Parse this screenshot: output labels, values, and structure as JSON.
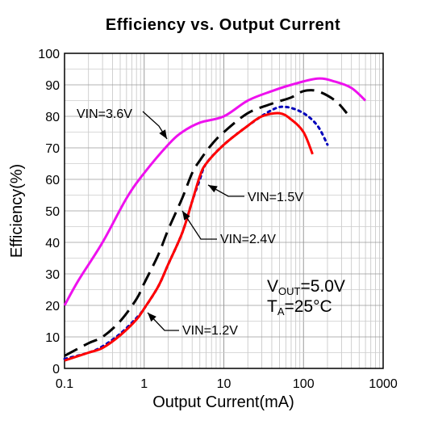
{
  "chart_data": {
    "type": "line",
    "title": "Efficiency vs. Output Current",
    "xlabel": "Output Current(mA)",
    "ylabel": "Efficiency(%)",
    "xscale": "log",
    "xlim": [
      0.1,
      1000
    ],
    "ylim": [
      0,
      100
    ],
    "x_ticks": [
      "0.1",
      "1",
      "10",
      "100",
      "1000"
    ],
    "y_ticks": [
      "0",
      "10",
      "20",
      "30",
      "40",
      "50",
      "60",
      "70",
      "80",
      "90",
      "100"
    ],
    "grid": true,
    "conditions": {
      "vout_symbol": "V",
      "vout_sub": "OUT",
      "vout_value": "=5.0V",
      "ta_symbol": "T",
      "ta_sub": "A",
      "ta_value": "=25°C"
    },
    "series": [
      {
        "name": "VIN=3.6V",
        "color": "#ee11ee",
        "style": "solid",
        "points": [
          [
            0.1,
            20
          ],
          [
            0.15,
            28
          ],
          [
            0.3,
            40
          ],
          [
            0.6,
            54
          ],
          [
            1,
            62
          ],
          [
            2,
            71
          ],
          [
            3,
            75
          ],
          [
            5,
            78
          ],
          [
            10,
            80
          ],
          [
            20,
            85
          ],
          [
            40,
            88
          ],
          [
            70,
            90
          ],
          [
            150,
            92
          ],
          [
            250,
            91
          ],
          [
            400,
            89
          ],
          [
            600,
            85
          ]
        ]
      },
      {
        "name": "VIN=2.4V",
        "color": "#000000",
        "style": "dash",
        "points": [
          [
            0.1,
            4
          ],
          [
            0.2,
            8
          ],
          [
            0.3,
            10
          ],
          [
            0.5,
            15
          ],
          [
            0.8,
            22
          ],
          [
            1,
            27
          ],
          [
            1.5,
            36
          ],
          [
            2,
            44
          ],
          [
            3,
            54
          ],
          [
            4,
            62
          ],
          [
            5,
            66
          ],
          [
            7,
            71
          ],
          [
            10,
            75
          ],
          [
            20,
            81
          ],
          [
            40,
            84
          ],
          [
            70,
            86
          ],
          [
            100,
            88
          ],
          [
            150,
            88
          ],
          [
            250,
            85
          ],
          [
            350,
            81
          ]
        ]
      },
      {
        "name": "VIN=1.5V",
        "color": "#0000bb",
        "style": "dot",
        "points": [
          [
            0.1,
            3
          ],
          [
            0.2,
            5
          ],
          [
            0.3,
            7
          ],
          [
            0.5,
            11
          ],
          [
            0.8,
            16
          ],
          [
            1,
            19
          ],
          [
            1.5,
            26
          ],
          [
            2,
            33
          ],
          [
            3,
            43
          ],
          [
            4,
            53
          ],
          [
            5,
            60
          ],
          [
            6,
            65
          ],
          [
            10,
            71
          ],
          [
            20,
            77
          ],
          [
            40,
            82
          ],
          [
            60,
            83
          ],
          [
            100,
            81
          ],
          [
            150,
            77
          ],
          [
            200,
            71
          ]
        ]
      },
      {
        "name": "VIN=1.2V",
        "color": "#ff0000",
        "style": "solid",
        "points": [
          [
            0.1,
            2.5
          ],
          [
            0.2,
            5
          ],
          [
            0.3,
            6.5
          ],
          [
            0.5,
            10.5
          ],
          [
            0.8,
            15.5
          ],
          [
            1,
            19
          ],
          [
            1.5,
            26
          ],
          [
            2,
            33
          ],
          [
            3,
            43
          ],
          [
            4,
            53
          ],
          [
            5,
            61
          ],
          [
            6,
            65
          ],
          [
            10,
            71
          ],
          [
            20,
            77
          ],
          [
            30,
            80
          ],
          [
            50,
            81
          ],
          [
            70,
            79
          ],
          [
            100,
            75
          ],
          [
            130,
            68
          ]
        ]
      }
    ],
    "annotations": [
      {
        "text": "VIN=3.6V",
        "series": "VIN=3.6V"
      },
      {
        "text": "VIN=1.5V",
        "series": "VIN=1.5V"
      },
      {
        "text": "VIN=2.4V",
        "series": "VIN=2.4V"
      },
      {
        "text": "VIN=1.2V",
        "series": "VIN=1.2V"
      }
    ]
  }
}
